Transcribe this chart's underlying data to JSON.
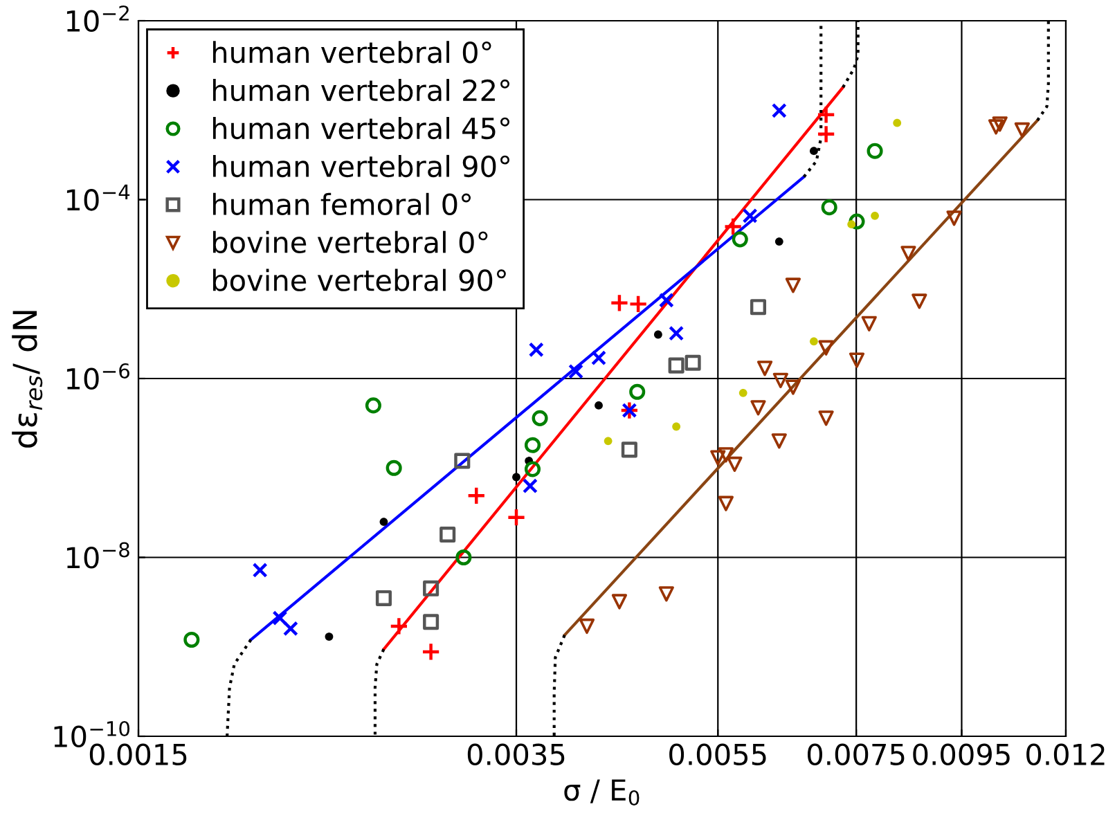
{
  "chart_data": {
    "type": "scatter",
    "xlabel": "σ / E$_{0}$",
    "ylabel": "dε$_{res}$/ dN",
    "log": "xy",
    "grid": true,
    "legend": "top left",
    "xlim": [
      0.0015,
      0.012
    ],
    "xticks": [
      0.0015,
      0.0035,
      0.0055,
      0.0075,
      0.0095,
      0.012
    ],
    "ylim": [
      1e-10,
      0.01
    ],
    "yticks": [
      {
        "value": 1e-10,
        "label": "10$^{−10}$"
      },
      {
        "value": 1e-08,
        "label": "10$^{−8}$"
      },
      {
        "value": 1e-06,
        "label": "10$^{−6}$"
      },
      {
        "value": 0.0001,
        "label": "10$^{−4}$"
      },
      {
        "value": 0.01,
        "label": "10$^{−2}$"
      }
    ],
    "series": [
      {
        "name": "human vertebral 0°",
        "marker": "plus",
        "color": "#ff0000",
        "x": [
          0.00701,
          0.00701,
          0.00569,
          0.00441,
          0.0046,
          0.00451,
          0.0032,
          0.0035,
          0.00269,
          0.00289
        ],
        "values": [
          0.00089,
          0.00054,
          5e-05,
          7e-06,
          6.8e-06,
          4.4e-07,
          4.9e-08,
          2.8e-08,
          1.7e-09,
          8.8e-10
        ]
      },
      {
        "name": "human vertebral 22°",
        "marker": "point",
        "color": "#000000",
        "x": [
          0.00682,
          0.00631,
          0.00481,
          0.00421,
          0.0036,
          0.0035,
          0.0026,
          0.0023
        ],
        "values": [
          0.00035,
          3.4e-05,
          3.1e-06,
          5e-07,
          1.2e-07,
          7.9e-08,
          2.5e-08,
          1.3e-09
        ]
      },
      {
        "name": "human vertebral 45°",
        "marker": "circle",
        "color": "#008000",
        "x": [
          0.00782,
          0.00706,
          0.00751,
          0.00578,
          0.00459,
          0.00369,
          0.00363,
          0.00363,
          0.00254,
          0.00266,
          0.00311,
          0.00169
        ],
        "values": [
          0.00035,
          8.2e-05,
          5.7e-05,
          3.6e-05,
          7.1e-07,
          3.6e-07,
          1.8e-07,
          9.7e-08,
          5e-07,
          1e-07,
          1e-08,
          1.2e-09
        ]
      },
      {
        "name": "human vertebral 90°",
        "marker": "cross",
        "color": "#0000ff",
        "x": [
          0.00631,
          0.00591,
          0.0049,
          0.00501,
          0.00421,
          0.004,
          0.00366,
          0.00451,
          0.00361,
          0.00197,
          0.00206,
          0.00211
        ],
        "values": [
          0.00099,
          6.6e-05,
          7.5e-06,
          3.2e-06,
          1.7e-06,
          1.2e-06,
          2.1e-06,
          4.4e-07,
          6.3e-08,
          7.2e-09,
          2.1e-09,
          1.6e-09
        ]
      },
      {
        "name": "human femoral 0°",
        "marker": "square",
        "color": "#555555",
        "x": [
          0.00602,
          0.00501,
          0.0052,
          0.00451,
          0.0031,
          0.003,
          0.00289,
          0.0026,
          0.00289
        ],
        "values": [
          6.3e-06,
          1.4e-06,
          1.5e-06,
          1.6e-07,
          1.2e-07,
          1.8e-08,
          4.5e-09,
          3.5e-09,
          1.9e-09
        ]
      },
      {
        "name": "bovine vertebral 0°",
        "marker": "triangle",
        "color": "#993300",
        "x": [
          0.01026,
          0.01035,
          0.01088,
          0.00934,
          0.00843,
          0.00864,
          0.00651,
          0.00772,
          0.00701,
          0.00751,
          0.00611,
          0.00633,
          0.00651,
          0.00602,
          0.00701,
          0.00631,
          0.0055,
          0.0056,
          0.00571,
          0.0056,
          0.0049,
          0.00441,
          0.0041
        ],
        "values": [
          0.00065,
          0.0007,
          0.0006,
          6.2e-05,
          2.5e-05,
          7.3e-06,
          1.1e-05,
          4.1e-06,
          2.2e-06,
          1.6e-06,
          1.3e-06,
          9.5e-07,
          8e-07,
          4.7e-07,
          3.6e-07,
          2e-07,
          1.3e-07,
          1.4e-07,
          1.1e-07,
          4e-08,
          3.9e-09,
          3.2e-09,
          1.7e-09
        ]
      },
      {
        "name": "bovine vertebral 90°",
        "marker": "point",
        "color": "#c8c800",
        "x": [
          0.00822,
          0.00782,
          0.00742,
          0.00682,
          0.00582,
          0.00501,
          0.0043
        ],
        "values": [
          0.00072,
          6.6e-05,
          5.3e-05,
          2.6e-06,
          6.9e-07,
          2.9e-07,
          2e-07
        ]
      },
      {
        "type": "line",
        "line_style": "solid",
        "color": "#ff0000",
        "x": [
          0.0026,
          0.00728
        ],
        "values": [
          9.4e-10,
          0.0018
        ]
      },
      {
        "type": "line",
        "line_style": "solid",
        "color": "#0000ff",
        "x": [
          0.00193,
          0.00667
        ],
        "values": [
          1.2e-09,
          0.00018
        ]
      },
      {
        "type": "line",
        "line_style": "solid",
        "color": "#8b4513",
        "x": [
          0.0039,
          0.01126
        ],
        "values": [
          1.35e-09,
          0.00077
        ]
      },
      {
        "type": "line",
        "line_style": "dotted",
        "color": "#000000",
        "x": [
          0.00193,
          0.00186,
          0.00184,
          0.00183
        ],
        "values": [
          1.2e-09,
          6.4e-10,
          3.5e-10,
          1e-10
        ]
      },
      {
        "type": "line",
        "line_style": "dotted",
        "color": "#000000",
        "x": [
          0.0026,
          0.00256,
          0.00255,
          0.00255
        ],
        "values": [
          9.4e-10,
          6.4e-10,
          3.5e-10,
          1e-10
        ]
      },
      {
        "type": "line",
        "line_style": "dotted",
        "color": "#000000",
        "x": [
          0.0039,
          0.00382,
          0.00381,
          0.00381
        ],
        "values": [
          1.35e-09,
          7.6e-10,
          3.1e-10,
          1e-10
        ]
      },
      {
        "type": "line",
        "line_style": "dotted",
        "color": "#000000",
        "x": [
          0.00728,
          0.00746,
          0.00753,
          0.00753
        ],
        "values": [
          0.0018,
          0.0029,
          0.0041,
          0.01
        ]
      },
      {
        "type": "line",
        "line_style": "dotted",
        "color": "#000000",
        "x": [
          0.00667,
          0.00686,
          0.00693,
          0.00693
        ],
        "values": [
          0.00018,
          0.00027,
          0.00049,
          0.01
        ]
      },
      {
        "type": "line",
        "line_style": "dotted",
        "color": "#000000",
        "x": [
          0.01126,
          0.0115,
          0.01154,
          0.01154
        ],
        "values": [
          0.00077,
          0.0011,
          0.002,
          0.01
        ]
      }
    ]
  }
}
